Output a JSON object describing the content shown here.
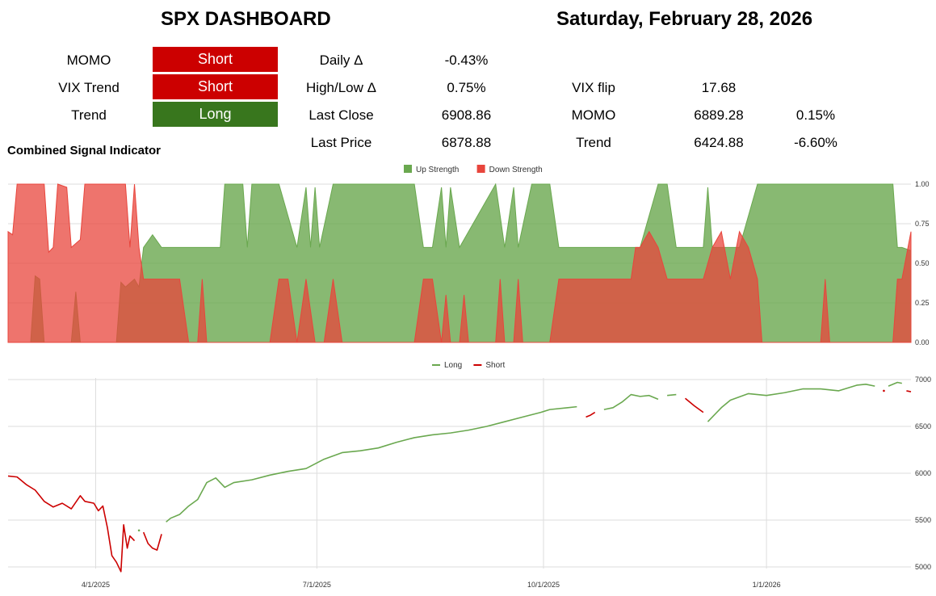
{
  "header": {
    "title": "SPX DASHBOARD",
    "date": "Saturday, February 28, 2026"
  },
  "signals": [
    {
      "label": "MOMO",
      "state": "Short",
      "color": "#cc0000"
    },
    {
      "label": "VIX Trend",
      "state": "Short",
      "color": "#cc0000"
    },
    {
      "label": "Trend",
      "state": "Long",
      "color": "#38761d"
    }
  ],
  "stats": [
    {
      "label": "Daily Δ",
      "value": "-0.43%"
    },
    {
      "label": "High/Low Δ",
      "value": "0.75%"
    },
    {
      "label": "Last Close",
      "value": "6908.86"
    },
    {
      "label": "Last Price",
      "value": "6878.88"
    }
  ],
  "levels": [
    {
      "label": "VIX flip",
      "value": "17.68",
      "pct": ""
    },
    {
      "label": "MOMO",
      "value": "6889.28",
      "pct": "0.15%"
    },
    {
      "label": "Trend",
      "value": "6424.88",
      "pct": "-6.60%"
    }
  ],
  "chart_data": [
    {
      "type": "area",
      "title": "Combined Signal Indicator",
      "ylim": [
        0,
        1
      ],
      "yticks": [
        "0.00",
        "0.25",
        "0.50",
        "0.75",
        "1.00"
      ],
      "grid": true,
      "legend_position": "top-center",
      "colors": {
        "up": "#6aa84f",
        "down": "#e8453c"
      },
      "series": [
        {
          "name": "Up Strength",
          "points": [
            [
              0,
              0
            ],
            [
              0.025,
              0
            ],
            [
              0.03,
              0.42
            ],
            [
              0.035,
              0.4
            ],
            [
              0.04,
              0
            ],
            [
              0.07,
              0
            ],
            [
              0.075,
              0.32
            ],
            [
              0.08,
              0
            ],
            [
              0.12,
              0
            ],
            [
              0.125,
              0.38
            ],
            [
              0.13,
              0.35
            ],
            [
              0.14,
              0.4
            ],
            [
              0.145,
              0.35
            ],
            [
              0.15,
              0.6
            ],
            [
              0.16,
              0.68
            ],
            [
              0.17,
              0.6
            ],
            [
              0.18,
              0.6
            ],
            [
              0.2,
              0.6
            ],
            [
              0.22,
              0.6
            ],
            [
              0.235,
              0.6
            ],
            [
              0.24,
              1
            ],
            [
              0.26,
              1
            ],
            [
              0.265,
              0.6
            ],
            [
              0.27,
              1
            ],
            [
              0.3,
              1
            ],
            [
              0.31,
              0.8
            ],
            [
              0.32,
              0.6
            ],
            [
              0.33,
              0.98
            ],
            [
              0.335,
              0.6
            ],
            [
              0.34,
              0.98
            ],
            [
              0.345,
              0.6
            ],
            [
              0.36,
              1
            ],
            [
              0.45,
              1
            ],
            [
              0.46,
              0.6
            ],
            [
              0.47,
              0.6
            ],
            [
              0.48,
              0.98
            ],
            [
              0.485,
              0.6
            ],
            [
              0.49,
              0.98
            ],
            [
              0.5,
              0.6
            ],
            [
              0.54,
              1
            ],
            [
              0.55,
              0.6
            ],
            [
              0.56,
              0.98
            ],
            [
              0.565,
              0.6
            ],
            [
              0.58,
              1
            ],
            [
              0.6,
              1
            ],
            [
              0.61,
              0.6
            ],
            [
              0.69,
              0.6
            ],
            [
              0.7,
              0.6
            ],
            [
              0.72,
              1
            ],
            [
              0.73,
              1
            ],
            [
              0.74,
              0.6
            ],
            [
              0.77,
              0.6
            ],
            [
              0.775,
              0.98
            ],
            [
              0.78,
              0.6
            ],
            [
              0.8,
              0.6
            ],
            [
              0.81,
              0.6
            ],
            [
              0.83,
              1
            ],
            [
              0.98,
              1
            ],
            [
              0.985,
              0.6
            ],
            [
              0.99,
              0.6
            ],
            [
              1.0,
              0.58
            ]
          ]
        },
        {
          "name": "Down Strength",
          "points": [
            [
              0,
              0.7
            ],
            [
              0.005,
              0.68
            ],
            [
              0.01,
              1
            ],
            [
              0.04,
              1
            ],
            [
              0.045,
              0.57
            ],
            [
              0.05,
              0.6
            ],
            [
              0.055,
              1
            ],
            [
              0.065,
              0.98
            ],
            [
              0.07,
              0.6
            ],
            [
              0.08,
              0.65
            ],
            [
              0.085,
              1
            ],
            [
              0.13,
              1
            ],
            [
              0.135,
              0.6
            ],
            [
              0.14,
              1
            ],
            [
              0.145,
              0.6
            ],
            [
              0.15,
              0.4
            ],
            [
              0.18,
              0.4
            ],
            [
              0.19,
              0.4
            ],
            [
              0.2,
              0
            ],
            [
              0.21,
              0
            ],
            [
              0.215,
              0.4
            ],
            [
              0.22,
              0
            ],
            [
              0.29,
              0
            ],
            [
              0.3,
              0.4
            ],
            [
              0.31,
              0.4
            ],
            [
              0.32,
              0
            ],
            [
              0.33,
              0.4
            ],
            [
              0.34,
              0
            ],
            [
              0.35,
              0
            ],
            [
              0.36,
              0.4
            ],
            [
              0.37,
              0
            ],
            [
              0.45,
              0
            ],
            [
              0.46,
              0.4
            ],
            [
              0.47,
              0.4
            ],
            [
              0.48,
              0
            ],
            [
              0.485,
              0.3
            ],
            [
              0.49,
              0
            ],
            [
              0.5,
              0
            ],
            [
              0.505,
              0.3
            ],
            [
              0.51,
              0
            ],
            [
              0.54,
              0
            ],
            [
              0.545,
              0.4
            ],
            [
              0.55,
              0
            ],
            [
              0.56,
              0
            ],
            [
              0.565,
              0.4
            ],
            [
              0.57,
              0
            ],
            [
              0.6,
              0
            ],
            [
              0.61,
              0.4
            ],
            [
              0.69,
              0.4
            ],
            [
              0.695,
              0.6
            ],
            [
              0.7,
              0.6
            ],
            [
              0.71,
              0.7
            ],
            [
              0.72,
              0.6
            ],
            [
              0.73,
              0.4
            ],
            [
              0.76,
              0.4
            ],
            [
              0.77,
              0.4
            ],
            [
              0.78,
              0.6
            ],
            [
              0.79,
              0.7
            ],
            [
              0.8,
              0.4
            ],
            [
              0.81,
              0.7
            ],
            [
              0.82,
              0.6
            ],
            [
              0.83,
              0.4
            ],
            [
              0.835,
              0
            ],
            [
              0.9,
              0
            ],
            [
              0.905,
              0.4
            ],
            [
              0.91,
              0
            ],
            [
              0.98,
              0
            ],
            [
              0.985,
              0.4
            ],
            [
              0.99,
              0.4
            ],
            [
              1.0,
              0.7
            ]
          ]
        }
      ]
    },
    {
      "type": "line",
      "title": "",
      "ylim": [
        5000,
        7000
      ],
      "yticks": [
        "5000",
        "5500",
        "6000",
        "6500",
        "7000"
      ],
      "xticks": [
        "4/1/2025",
        "7/1/2025",
        "10/1/2025",
        "1/1/2026"
      ],
      "grid": true,
      "legend_position": "top-center",
      "colors": {
        "long": "#6aa84f",
        "short": "#cc0000"
      },
      "series": [
        {
          "name": "Long"
        },
        {
          "name": "Short"
        }
      ],
      "segments": [
        {
          "signal": "short",
          "points": [
            [
              0,
              5970
            ],
            [
              0.01,
              5960
            ],
            [
              0.02,
              5880
            ],
            [
              0.03,
              5820
            ],
            [
              0.04,
              5700
            ],
            [
              0.05,
              5640
            ],
            [
              0.06,
              5680
            ],
            [
              0.07,
              5620
            ],
            [
              0.08,
              5760
            ],
            [
              0.085,
              5700
            ],
            [
              0.095,
              5680
            ],
            [
              0.1,
              5600
            ],
            [
              0.105,
              5650
            ],
            [
              0.11,
              5420
            ],
            [
              0.115,
              5120
            ],
            [
              0.12,
              5050
            ],
            [
              0.125,
              4950
            ],
            [
              0.128,
              5450
            ],
            [
              0.132,
              5200
            ],
            [
              0.135,
              5330
            ],
            [
              0.14,
              5280
            ]
          ]
        },
        {
          "signal": "long",
          "points": [
            [
              0.145,
              5390
            ]
          ]
        },
        {
          "signal": "short",
          "points": [
            [
              0.15,
              5370
            ],
            [
              0.155,
              5250
            ],
            [
              0.16,
              5200
            ],
            [
              0.165,
              5180
            ],
            [
              0.17,
              5350
            ]
          ]
        },
        {
          "signal": "long",
          "points": [
            [
              0.175,
              5480
            ],
            [
              0.18,
              5520
            ],
            [
              0.19,
              5560
            ],
            [
              0.2,
              5650
            ],
            [
              0.21,
              5720
            ],
            [
              0.22,
              5900
            ],
            [
              0.23,
              5950
            ],
            [
              0.24,
              5850
            ],
            [
              0.25,
              5900
            ],
            [
              0.27,
              5930
            ],
            [
              0.29,
              5980
            ],
            [
              0.31,
              6020
            ],
            [
              0.33,
              6050
            ],
            [
              0.35,
              6150
            ],
            [
              0.37,
              6220
            ],
            [
              0.39,
              6240
            ],
            [
              0.41,
              6270
            ],
            [
              0.43,
              6330
            ],
            [
              0.45,
              6380
            ],
            [
              0.47,
              6410
            ],
            [
              0.49,
              6430
            ],
            [
              0.51,
              6460
            ],
            [
              0.53,
              6500
            ],
            [
              0.55,
              6550
            ],
            [
              0.57,
              6600
            ],
            [
              0.59,
              6650
            ],
            [
              0.6,
              6680
            ],
            [
              0.62,
              6700
            ],
            [
              0.63,
              6710
            ]
          ]
        },
        {
          "signal": "short",
          "points": [
            [
              0.64,
              6600
            ],
            [
              0.645,
              6620
            ],
            [
              0.65,
              6650
            ]
          ]
        },
        {
          "signal": "long",
          "points": [
            [
              0.66,
              6680
            ],
            [
              0.67,
              6700
            ],
            [
              0.68,
              6760
            ],
            [
              0.69,
              6840
            ],
            [
              0.7,
              6820
            ],
            [
              0.71,
              6830
            ],
            [
              0.72,
              6790
            ]
          ]
        },
        {
          "signal": "long",
          "points": [
            [
              0.73,
              6830
            ],
            [
              0.74,
              6840
            ]
          ]
        },
        {
          "signal": "short",
          "points": [
            [
              0.75,
              6800
            ],
            [
              0.76,
              6720
            ],
            [
              0.77,
              6650
            ]
          ]
        },
        {
          "signal": "long",
          "points": [
            [
              0.775,
              6550
            ],
            [
              0.79,
              6700
            ],
            [
              0.8,
              6780
            ],
            [
              0.82,
              6850
            ],
            [
              0.84,
              6830
            ],
            [
              0.86,
              6860
            ],
            [
              0.88,
              6900
            ],
            [
              0.9,
              6900
            ],
            [
              0.92,
              6880
            ],
            [
              0.94,
              6940
            ],
            [
              0.95,
              6950
            ],
            [
              0.96,
              6930
            ]
          ]
        },
        {
          "signal": "short",
          "points": [
            [
              0.97,
              6880
            ]
          ]
        },
        {
          "signal": "long",
          "points": [
            [
              0.975,
              6930
            ],
            [
              0.985,
              6970
            ],
            [
              0.99,
              6960
            ]
          ]
        },
        {
          "signal": "short",
          "points": [
            [
              0.995,
              6880
            ],
            [
              1.0,
              6870
            ]
          ]
        }
      ]
    }
  ]
}
